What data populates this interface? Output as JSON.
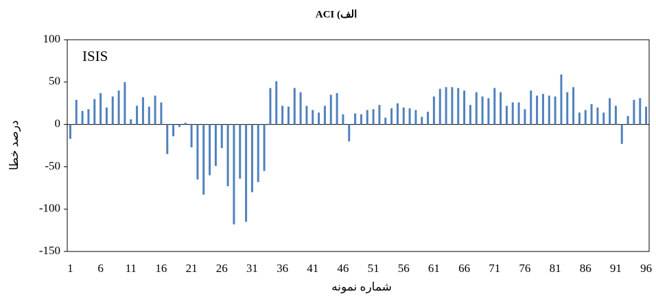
{
  "chart_data": {
    "type": "bar",
    "title": "الف) ACI",
    "annotation": "ISIS",
    "x_label": "شماره نمونه",
    "y_label": "درصد خطا",
    "categories": [
      "1",
      null,
      null,
      null,
      null,
      "6",
      null,
      null,
      null,
      null,
      "11",
      null,
      null,
      null,
      null,
      "16",
      null,
      null,
      null,
      null,
      "21",
      null,
      null,
      null,
      null,
      "26",
      null,
      null,
      null,
      null,
      "31",
      null,
      null,
      null,
      null,
      "36",
      null,
      null,
      null,
      null,
      "41",
      null,
      null,
      null,
      null,
      "46",
      null,
      null,
      null,
      null,
      "51",
      null,
      null,
      null,
      null,
      "56",
      null,
      null,
      null,
      null,
      "61",
      null,
      null,
      null,
      null,
      "66",
      null,
      null,
      null,
      null,
      "71",
      null,
      null,
      null,
      null,
      "76",
      null,
      null,
      null,
      null,
      "81",
      null,
      null,
      null,
      null,
      "86",
      null,
      null,
      null,
      null,
      "91",
      null,
      null,
      null,
      null,
      "96"
    ],
    "values": [
      -17,
      29,
      16,
      18,
      30,
      37,
      20,
      33,
      40,
      50,
      6,
      22,
      32,
      21,
      34,
      26,
      -35,
      -14,
      -3,
      2,
      -27,
      -65,
      -83,
      -60,
      -49,
      -28,
      -73,
      -118,
      -64,
      -115,
      -80,
      -68,
      -55,
      43,
      51,
      22,
      21,
      43,
      38,
      22,
      17,
      14,
      22,
      35,
      37,
      12,
      -20,
      13,
      12,
      17,
      18,
      23,
      8,
      19,
      25,
      20,
      19,
      17,
      9,
      15,
      33,
      42,
      44,
      44,
      43,
      40,
      23,
      38,
      33,
      31,
      43,
      38,
      22,
      26,
      26,
      18,
      40,
      34,
      36,
      34,
      33,
      59,
      38,
      44,
      14,
      17,
      24,
      20,
      14,
      31,
      22,
      -23,
      10,
      29,
      31,
      21
    ],
    "color": "#4f81bd",
    "ylim": [
      -150,
      100
    ],
    "yticks": [
      -150,
      -100,
      -50,
      0,
      50,
      100
    ],
    "grid": false
  }
}
